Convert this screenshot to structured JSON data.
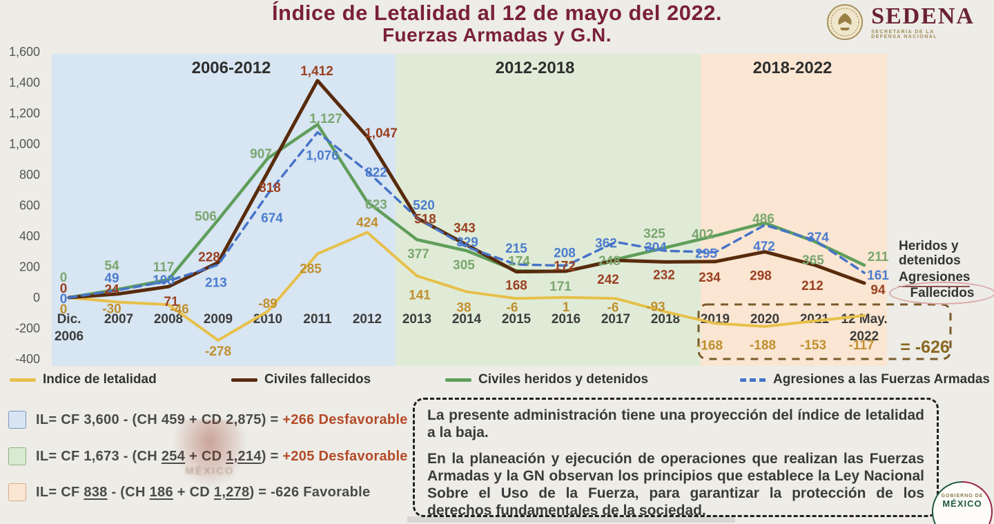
{
  "page": {
    "background": "#EDECE7"
  },
  "header": {
    "title_line1": "Índice de Letalidad al 12 de mayo del 2022.",
    "title_line2": "Fuerzas Armadas y G.N.",
    "title_color": "#7A2038",
    "sedena": {
      "wordmark": "SEDENA",
      "subtitle_line1": "SECRETARÍA DE LA",
      "subtitle_line2": "DEFENSA NACIONAL"
    }
  },
  "chart_data": {
    "type": "line",
    "title": "Índice de Letalidad al 12 de mayo del 2022. Fuerzas Armadas y G.N.",
    "ylim": [
      -400,
      1600
    ],
    "grid": false,
    "legend_position": "bottom",
    "y_ticks": [
      {
        "v": 1600,
        "label": "1,600"
      },
      {
        "v": 1400,
        "label": "1,400"
      },
      {
        "v": 1200,
        "label": "1,200"
      },
      {
        "v": 1000,
        "label": "1,000"
      },
      {
        "v": 800,
        "label": "800"
      },
      {
        "v": 600,
        "label": "600"
      },
      {
        "v": 400,
        "label": "400"
      },
      {
        "v": 200,
        "label": "200"
      },
      {
        "v": 0,
        "label": "0"
      },
      {
        "v": -200,
        "label": "-200"
      },
      {
        "v": -400,
        "label": "-400"
      }
    ],
    "categories": [
      "Dic.\n2006",
      "2007",
      "2008",
      "2009",
      "2010",
      "2011",
      "2012",
      "2013",
      "2014",
      "2015",
      "2016",
      "2017",
      "2018",
      "2019",
      "2020",
      "2021",
      "12 May.\n2022"
    ],
    "periods": [
      {
        "label": "2006-2012",
        "color": "#D8E5F2"
      },
      {
        "label": "2012-2018",
        "color": "#E0EBD7"
      },
      {
        "label": "2018-2022",
        "color": "#FAE6D2"
      }
    ],
    "series": [
      {
        "name": "Indice de letalidad",
        "color": "#E7C04A",
        "label_color": "#BF8F2E",
        "dash": false,
        "values": [
          0,
          -30,
          -46,
          -278,
          -89,
          285,
          424,
          141,
          38,
          -6,
          1,
          -6,
          -93,
          -168,
          -188,
          -153,
          -117
        ],
        "labels": [
          "0",
          "-30",
          "-46",
          "-278",
          "-89",
          "285",
          "424",
          "141",
          "38",
          "-6",
          "1",
          "-6",
          "-93",
          "-168",
          "-188",
          "-153",
          "-117"
        ]
      },
      {
        "name": "Civiles fallecidos",
        "color": "#582B0D",
        "label_color": "#9A4022",
        "dash": false,
        "values": [
          0,
          24,
          71,
          228,
          818,
          1412,
          1047,
          518,
          343,
          168,
          172,
          242,
          232,
          234,
          298,
          212,
          94
        ],
        "labels": [
          "0",
          "24",
          "71",
          "228",
          "818",
          "1,412",
          "1,047",
          "518",
          "343",
          "168",
          "172",
          "242",
          "232",
          "234",
          "298",
          "212",
          "94"
        ]
      },
      {
        "name": "Civiles heridos y detenidos",
        "color": "#5F9E5B",
        "label_color": "#7AA76F",
        "dash": false,
        "values": [
          0,
          54,
          117,
          506,
          907,
          1127,
          623,
          377,
          305,
          174,
          171,
          248,
          325,
          402,
          486,
          365,
          211
        ],
        "labels": [
          "0",
          "54",
          "117",
          "506",
          "907",
          "1,127",
          "623",
          "377",
          "305",
          "174",
          "171",
          "248",
          "325",
          "402",
          "486",
          "365",
          "211"
        ]
      },
      {
        "name": "Agresiones a las Fuerzas Armadas",
        "color": "#4673C8",
        "label_color": "#4C7CCE",
        "dash": true,
        "values": [
          0,
          49,
          108,
          213,
          674,
          1076,
          822,
          520,
          329,
          215,
          208,
          362,
          304,
          295,
          472,
          374,
          161
        ],
        "labels": [
          "0",
          "49",
          "108",
          "213",
          "674",
          "1,076",
          "822",
          "520",
          "329",
          "215",
          "208",
          "362",
          "304",
          "295",
          "472",
          "374",
          "161"
        ]
      }
    ],
    "sum_annotation": {
      "label": "= -626",
      "color": "#8A6820"
    },
    "right_labels": [
      {
        "text": "Heridos y\ndetenidos"
      },
      {
        "text": "Agresiones",
        "underline": true
      },
      {
        "text": "Fallecidos",
        "oval": true
      }
    ]
  },
  "legend": {
    "items": [
      {
        "label": "Indice de letalidad",
        "series": 0
      },
      {
        "label": "Civiles fallecidos",
        "series": 1
      },
      {
        "label": "Civiles heridos y detenidos",
        "series": 2
      },
      {
        "label": "Agresiones a las Fuerzas Armadas",
        "series": 3
      }
    ]
  },
  "formulas": {
    "accent_color": "#B44A28",
    "rows": [
      {
        "box_fill": "#D9E4F2",
        "box_border": "#7C96C4",
        "segments": [
          {
            "t": "IL= CF 3,600 - (CH 459 + CD 2,875) = "
          },
          {
            "t": "+266  Desfavorable",
            "accent": true
          }
        ]
      },
      {
        "box_fill": "#D9EAD2",
        "box_border": "#8FB080",
        "segments": [
          {
            "t": "IL= CF 1,673 - (CH "
          },
          {
            "t": "254",
            "u": true
          },
          {
            "t": " + CD "
          },
          {
            "t": "1,214",
            "u": true
          },
          {
            "t": ") = "
          },
          {
            "t": "+205  Desfavorable",
            "accent": true
          }
        ]
      },
      {
        "box_fill": "#FBE6D4",
        "box_border": "#D9A989",
        "segments": [
          {
            "t": "IL= CF "
          },
          {
            "t": "838",
            "u": true
          },
          {
            "t": " - (CH "
          },
          {
            "t": "186",
            "u": true
          },
          {
            "t": " + CD "
          },
          {
            "t": "1,278",
            "u": true
          },
          {
            "t": ") = -626 Favorable"
          }
        ]
      }
    ]
  },
  "note_box": {
    "paragraphs": [
      "La presente administración tiene una proyección del índice de letalidad a la baja.",
      "En la planeación y ejecución de operaciones que realizan las Fuerzas Armadas y la GN observan los principios que establece la Ley Nacional Sobre el Uso de la Fuerza, para garantizar la protección de los derechos fundamentales de la sociedad."
    ]
  },
  "footer_seal": {
    "line1": "GOBIERNO DE",
    "line2": "MÉXICO"
  },
  "watermark": {
    "text": "MÉXICO"
  }
}
